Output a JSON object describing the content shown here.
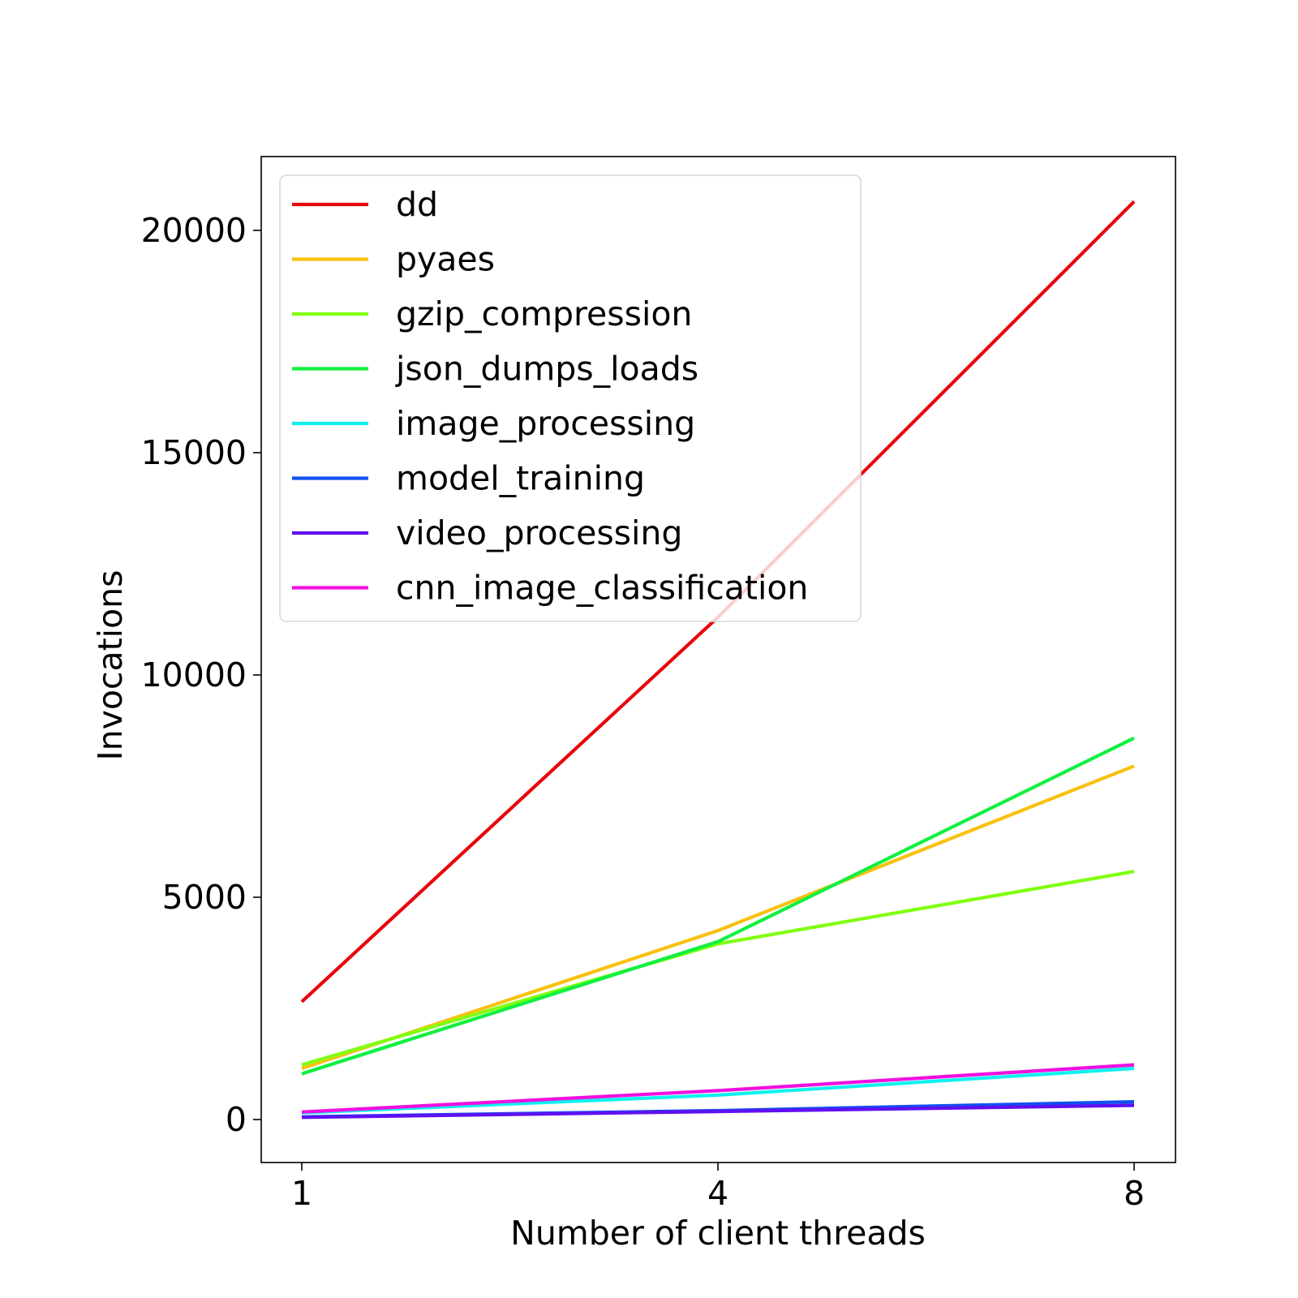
{
  "chart_data": {
    "type": "line",
    "title": "",
    "xlabel": "Number of client threads",
    "ylabel": "Invocations",
    "x": [
      1,
      4,
      8
    ],
    "x_tick_labels": [
      "1",
      "4",
      "8"
    ],
    "y_ticks": [
      0,
      5000,
      10000,
      15000,
      20000
    ],
    "y_tick_labels": [
      "0",
      "5000",
      "10000",
      "15000",
      "20000"
    ],
    "ylim": [
      -1000,
      21700
    ],
    "grid": false,
    "legend_position": "upper-left",
    "series": [
      {
        "name": "dd",
        "color": "#e8070c",
        "values": [
          2650,
          11300,
          20650
        ]
      },
      {
        "name": "pyaes",
        "color": "#f8c10f",
        "values": [
          1150,
          4250,
          7950
        ]
      },
      {
        "name": "gzip_compression",
        "color": "#80ff10",
        "values": [
          1230,
          3950,
          5580
        ]
      },
      {
        "name": "json_dumps_loads",
        "color": "#10f040",
        "values": [
          1030,
          4000,
          8580
        ]
      },
      {
        "name": "image_processing",
        "color": "#10f0f0",
        "values": [
          150,
          550,
          1150
        ]
      },
      {
        "name": "model_training",
        "color": "#1050f0",
        "values": [
          60,
          200,
          400
        ]
      },
      {
        "name": "video_processing",
        "color": "#6010f0",
        "values": [
          50,
          180,
          320
        ]
      },
      {
        "name": "cnn_image_classification",
        "color": "#f010e0",
        "values": [
          170,
          650,
          1230
        ]
      }
    ]
  }
}
